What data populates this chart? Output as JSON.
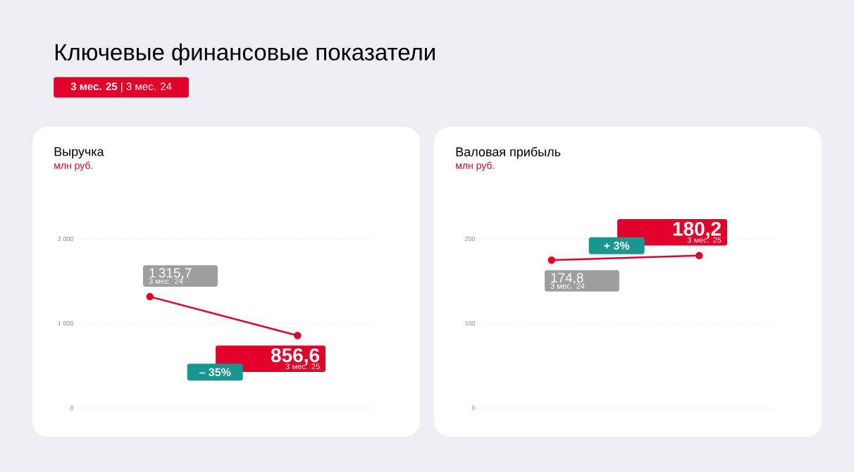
{
  "chart_data": [
    {
      "type": "other",
      "title": "Ключевые финансовые показатели",
      "annotations": [
        "**3 мес. 25** | 3 мес. 24"
      ],
      "color": "#e0002a"
    },
    {
      "type": "line",
      "title": "Выручка",
      "subtitle": "млн руб.",
      "categories": [
        null,
        null
      ],
      "series": [
        {
          "color": "#e0002a",
          "values": [
            1315.7,
            856.6
          ],
          "value_labels": [
            "1 315,7",
            "856,6"
          ]
        }
      ],
      "annotations": [
        "3 мес. 24",
        "3 мес. 25",
        "– 35%"
      ],
      "ylim": [
        0,
        2000
      ],
      "yticks": [
        0,
        {
          "value": 1000,
          "label": "1 000"
        },
        {
          "value": 2000,
          "label": "2 000"
        }
      ],
      "grid": "y",
      "marker": "circle"
    },
    {
      "type": "line",
      "title": "Валовая прибыль",
      "subtitle": "млн руб.",
      "categories": [
        null,
        null
      ],
      "series": [
        {
          "color": "#e0002a",
          "values": [
            174.8,
            180.2
          ],
          "value_labels": [
            "174,8",
            "180,2"
          ]
        }
      ],
      "annotations": [
        "3 мес. 24",
        "3 мес. 25",
        "+ 3%"
      ],
      "ylim": [
        0,
        200
      ],
      "yticks": [
        0,
        100,
        200
      ],
      "grid": "y",
      "marker": "circle"
    }
  ]
}
